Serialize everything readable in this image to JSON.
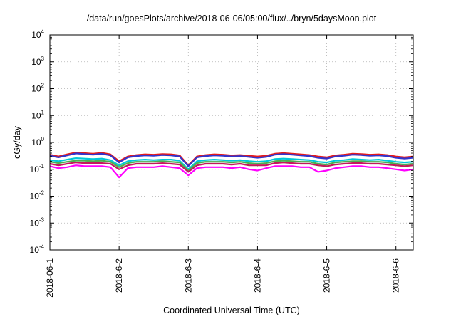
{
  "chart_data": {
    "type": "line",
    "title": "/data/run/goesPlots/archive/2018-06-06/05:00/flux/../bryn/5daysMoon.plot",
    "xlabel": "Coordinated Universal Time (UTC)",
    "ylabel": "cGy/day",
    "y_scale": "log",
    "ylim": [
      0.0001,
      10000
    ],
    "xlim": [
      "2018-06-01T00:00",
      "2018-06-06T06:00"
    ],
    "grid": true,
    "legend": "none",
    "y_ticks": [
      {
        "base": "10",
        "exp": "4",
        "value": 10000
      },
      {
        "base": "10",
        "exp": "3",
        "value": 1000
      },
      {
        "base": "10",
        "exp": "2",
        "value": 100
      },
      {
        "base": "10",
        "exp": "1",
        "value": 10
      },
      {
        "base": "10",
        "exp": "0",
        "value": 1
      },
      {
        "base": "10",
        "exp": "-1",
        "value": 0.1
      },
      {
        "base": "10",
        "exp": "-2",
        "value": 0.01
      },
      {
        "base": "10",
        "exp": "-3",
        "value": 0.001
      },
      {
        "base": "10",
        "exp": "-4",
        "value": 0.0001
      }
    ],
    "x_ticks": [
      {
        "label": "2018-06-1",
        "value": "2018-06-01"
      },
      {
        "label": "2018-6-2",
        "value": "2018-06-02"
      },
      {
        "label": "2018-6-3",
        "value": "2018-06-03"
      },
      {
        "label": "2018-6-4",
        "value": "2018-06-04"
      },
      {
        "label": "2018-6-5",
        "value": "2018-06-05"
      },
      {
        "label": "2018-6-6",
        "value": "2018-06-06"
      }
    ],
    "x": [
      "2018-06-01T00:00",
      "2018-06-01T03:00",
      "2018-06-01T06:00",
      "2018-06-01T09:00",
      "2018-06-01T12:00",
      "2018-06-01T15:00",
      "2018-06-01T18:00",
      "2018-06-01T21:00",
      "2018-06-02T00:00",
      "2018-06-02T03:00",
      "2018-06-02T06:00",
      "2018-06-02T09:00",
      "2018-06-02T12:00",
      "2018-06-02T15:00",
      "2018-06-02T18:00",
      "2018-06-02T21:00",
      "2018-06-03T00:00",
      "2018-06-03T03:00",
      "2018-06-03T06:00",
      "2018-06-03T09:00",
      "2018-06-03T12:00",
      "2018-06-03T15:00",
      "2018-06-03T18:00",
      "2018-06-03T21:00",
      "2018-06-04T00:00",
      "2018-06-04T03:00",
      "2018-06-04T06:00",
      "2018-06-04T09:00",
      "2018-06-04T12:00",
      "2018-06-04T15:00",
      "2018-06-04T18:00",
      "2018-06-04T21:00",
      "2018-06-05T00:00",
      "2018-06-05T03:00",
      "2018-06-05T06:00",
      "2018-06-05T09:00",
      "2018-06-05T12:00",
      "2018-06-05T15:00",
      "2018-06-05T18:00",
      "2018-06-05T21:00",
      "2018-06-06T00:00",
      "2018-06-06T03:00",
      "2018-06-06T06:00"
    ],
    "series": [
      {
        "color": "#e41a1c",
        "values": [
          0.35,
          0.3,
          0.36,
          0.42,
          0.4,
          0.38,
          0.41,
          0.36,
          0.2,
          0.3,
          0.34,
          0.36,
          0.35,
          0.37,
          0.36,
          0.33,
          0.14,
          0.3,
          0.34,
          0.36,
          0.35,
          0.33,
          0.34,
          0.32,
          0.3,
          0.32,
          0.38,
          0.4,
          0.38,
          0.36,
          0.34,
          0.3,
          0.28,
          0.33,
          0.35,
          0.38,
          0.37,
          0.35,
          0.36,
          0.34,
          0.3,
          0.28,
          0.3
        ]
      },
      {
        "color": "#3333cc",
        "values": [
          0.32,
          0.28,
          0.33,
          0.39,
          0.37,
          0.35,
          0.38,
          0.33,
          0.18,
          0.28,
          0.31,
          0.33,
          0.32,
          0.34,
          0.33,
          0.3,
          0.13,
          0.28,
          0.31,
          0.33,
          0.32,
          0.3,
          0.31,
          0.29,
          0.27,
          0.29,
          0.35,
          0.37,
          0.35,
          0.33,
          0.31,
          0.27,
          0.25,
          0.3,
          0.32,
          0.35,
          0.34,
          0.32,
          0.33,
          0.31,
          0.27,
          0.25,
          0.27
        ]
      },
      {
        "color": "#00c8d8",
        "values": [
          0.22,
          0.2,
          0.23,
          0.26,
          0.25,
          0.24,
          0.25,
          0.22,
          0.14,
          0.2,
          0.22,
          0.23,
          0.22,
          0.23,
          0.23,
          0.21,
          0.1,
          0.2,
          0.22,
          0.23,
          0.22,
          0.21,
          0.22,
          0.2,
          0.19,
          0.2,
          0.24,
          0.25,
          0.24,
          0.23,
          0.22,
          0.19,
          0.18,
          0.21,
          0.22,
          0.24,
          0.23,
          0.22,
          0.23,
          0.21,
          0.19,
          0.18,
          0.19
        ]
      },
      {
        "color": "#4caf50",
        "values": [
          0.19,
          0.17,
          0.19,
          0.21,
          0.21,
          0.2,
          0.21,
          0.19,
          0.12,
          0.17,
          0.19,
          0.19,
          0.19,
          0.2,
          0.19,
          0.18,
          0.09,
          0.17,
          0.19,
          0.19,
          0.19,
          0.18,
          0.19,
          0.17,
          0.16,
          0.17,
          0.2,
          0.21,
          0.2,
          0.19,
          0.19,
          0.16,
          0.15,
          0.18,
          0.19,
          0.2,
          0.2,
          0.19,
          0.19,
          0.18,
          0.16,
          0.15,
          0.16
        ]
      },
      {
        "color": "#c2185b",
        "values": [
          0.16,
          0.14,
          0.16,
          0.18,
          0.17,
          0.17,
          0.17,
          0.16,
          0.1,
          0.14,
          0.16,
          0.16,
          0.16,
          0.17,
          0.16,
          0.15,
          0.08,
          0.14,
          0.16,
          0.16,
          0.16,
          0.15,
          0.16,
          0.14,
          0.14,
          0.14,
          0.17,
          0.18,
          0.17,
          0.16,
          0.16,
          0.14,
          0.13,
          0.15,
          0.16,
          0.17,
          0.17,
          0.16,
          0.16,
          0.15,
          0.14,
          0.13,
          0.14
        ]
      },
      {
        "color": "#ff00ff",
        "values": [
          0.13,
          0.11,
          0.12,
          0.14,
          0.13,
          0.13,
          0.13,
          0.12,
          0.05,
          0.11,
          0.12,
          0.12,
          0.12,
          0.13,
          0.12,
          0.11,
          0.06,
          0.11,
          0.12,
          0.12,
          0.12,
          0.11,
          0.12,
          0.1,
          0.09,
          0.11,
          0.13,
          0.13,
          0.13,
          0.12,
          0.12,
          0.08,
          0.09,
          0.11,
          0.12,
          0.13,
          0.13,
          0.12,
          0.12,
          0.11,
          0.1,
          0.09,
          0.1
        ]
      }
    ]
  }
}
